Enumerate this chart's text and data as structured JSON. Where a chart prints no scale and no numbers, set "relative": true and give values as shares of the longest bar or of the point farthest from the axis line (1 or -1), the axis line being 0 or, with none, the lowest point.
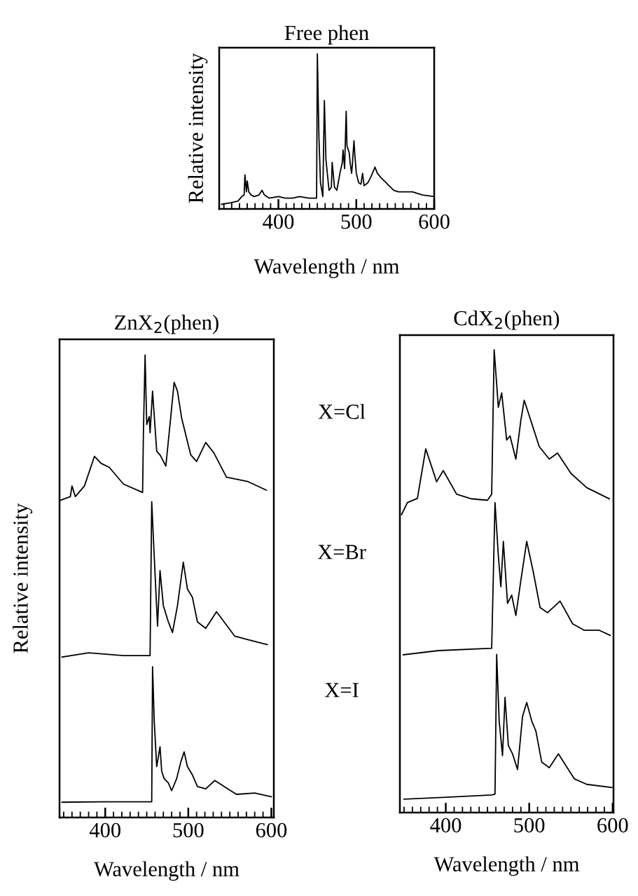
{
  "chart_data": [
    {
      "type": "line",
      "relative": true,
      "title": "Free phen",
      "xlabel": "Wavelength / nm",
      "ylabel": "Relative intensity",
      "xlim": [
        324,
        600
      ],
      "xticks": [
        {
          "value": 330,
          "label": null
        },
        {
          "value": 340,
          "label": null
        },
        {
          "value": 350,
          "label": null
        },
        {
          "value": 360,
          "label": null
        },
        {
          "value": 370,
          "label": null
        },
        {
          "value": 380,
          "label": null
        },
        {
          "value": 390,
          "label": null
        },
        400,
        {
          "value": 410,
          "label": null
        },
        {
          "value": 420,
          "label": null
        },
        {
          "value": 430,
          "label": null
        },
        {
          "value": 440,
          "label": null
        },
        {
          "value": 450,
          "label": null
        },
        {
          "value": 460,
          "label": null
        },
        {
          "value": 470,
          "label": null
        },
        {
          "value": 480,
          "label": null
        },
        {
          "value": 490,
          "label": null
        },
        500,
        {
          "value": 510,
          "label": null
        },
        {
          "value": 520,
          "label": null
        },
        {
          "value": 530,
          "label": null
        },
        {
          "value": 540,
          "label": null
        },
        {
          "value": 550,
          "label": null
        },
        {
          "value": 560,
          "label": null
        },
        {
          "value": 570,
          "label": null
        },
        {
          "value": 580,
          "label": null
        },
        {
          "value": 590,
          "label": null
        },
        600
      ],
      "series": [
        {
          "color": "#000000",
          "x": [
            327,
            339,
            348,
            353,
            356,
            357,
            359,
            360,
            362,
            365,
            369,
            375,
            379,
            382,
            388,
            400,
            409,
            418,
            427,
            439,
            449,
            450,
            452,
            454,
            457,
            459,
            461,
            465,
            468,
            469,
            472,
            475,
            479,
            482,
            483,
            485,
            487,
            488,
            491,
            492,
            494,
            495,
            497,
            498,
            500,
            503,
            506,
            508,
            510,
            515,
            519,
            524,
            527,
            532,
            536,
            542,
            548,
            554,
            563,
            572,
            585,
            600
          ],
          "values": [
            0.03,
            0.04,
            0.05,
            0.08,
            0.09,
            0.22,
            0.11,
            0.18,
            0.11,
            0.09,
            0.08,
            0.09,
            0.12,
            0.09,
            0.07,
            0.08,
            0.07,
            0.07,
            0.08,
            0.07,
            0.07,
            1.0,
            0.47,
            0.17,
            0.08,
            0.7,
            0.32,
            0.12,
            0.14,
            0.3,
            0.14,
            0.12,
            0.23,
            0.3,
            0.38,
            0.26,
            0.63,
            0.41,
            0.36,
            0.3,
            0.23,
            0.29,
            0.44,
            0.36,
            0.23,
            0.17,
            0.16,
            0.23,
            0.15,
            0.17,
            0.21,
            0.27,
            0.23,
            0.2,
            0.18,
            0.15,
            0.12,
            0.11,
            0.11,
            0.11,
            0.09,
            0.08
          ]
        }
      ]
    },
    {
      "type": "line",
      "relative": true,
      "title": "ZnX$_{2}$(phen)",
      "xlabel": "Wavelength / nm",
      "ylabel": "Relative intensity",
      "xlim": [
        345,
        603
      ],
      "xticks": [
        {
          "value": 350,
          "label": null
        },
        {
          "value": 360,
          "label": null
        },
        {
          "value": 370,
          "label": null
        },
        {
          "value": 380,
          "label": null
        },
        {
          "value": 390,
          "label": null
        },
        400,
        {
          "value": 410,
          "label": null
        },
        {
          "value": 420,
          "label": null
        },
        {
          "value": 430,
          "label": null
        },
        {
          "value": 440,
          "label": null
        },
        {
          "value": 450,
          "label": null
        },
        {
          "value": 460,
          "label": null
        },
        {
          "value": 470,
          "label": null
        },
        {
          "value": 480,
          "label": null
        },
        {
          "value": 490,
          "label": null
        },
        500,
        {
          "value": 510,
          "label": null
        },
        {
          "value": 520,
          "label": null
        },
        {
          "value": 530,
          "label": null
        },
        {
          "value": 540,
          "label": null
        },
        {
          "value": 550,
          "label": null
        },
        {
          "value": 560,
          "label": null
        },
        {
          "value": 570,
          "label": null
        },
        {
          "value": 580,
          "label": null
        },
        {
          "value": 590,
          "label": null
        },
        600
      ],
      "series": [
        {
          "color": "#000000",
          "x": [
            346,
            358,
            360,
            364,
            375,
            387,
            395,
            405,
            422,
            445,
            446,
            448,
            450,
            453,
            454,
            457,
            462,
            466,
            473,
            479,
            483,
            487,
            492,
            503,
            510,
            521,
            531,
            546,
            571,
            594
          ],
          "values": [
            0.686,
            0.694,
            0.717,
            0.694,
            0.717,
            0.781,
            0.766,
            0.757,
            0.721,
            0.703,
            0.832,
            1.0,
            0.85,
            0.867,
            0.832,
            0.922,
            0.792,
            0.784,
            0.76,
            0.868,
            0.941,
            0.922,
            0.864,
            0.784,
            0.77,
            0.811,
            0.788,
            0.736,
            0.727,
            0.708
          ]
        },
        {
          "color": "#000000",
          "x": [
            348,
            380,
            422,
            454,
            456,
            459,
            463,
            466,
            470,
            476,
            481,
            487,
            494,
            499,
            505,
            511,
            521,
            534,
            556,
            571,
            595
          ],
          "values": [
            0.347,
            0.356,
            0.35,
            0.35,
            0.683,
            0.565,
            0.414,
            0.534,
            0.458,
            0.423,
            0.4,
            0.458,
            0.552,
            0.494,
            0.476,
            0.423,
            0.409,
            0.445,
            0.392,
            0.385,
            0.374
          ]
        },
        {
          "color": "#000000",
          "x": [
            348,
            397,
            456,
            457,
            459,
            462,
            466,
            468,
            471,
            476,
            480,
            486,
            491,
            495,
            499,
            505,
            511,
            521,
            532,
            543,
            558,
            580,
            600
          ],
          "values": [
            0.033,
            0.034,
            0.034,
            0.326,
            0.209,
            0.11,
            0.153,
            0.1,
            0.084,
            0.075,
            0.058,
            0.084,
            0.12,
            0.142,
            0.11,
            0.092,
            0.067,
            0.062,
            0.08,
            0.067,
            0.05,
            0.053,
            0.045
          ]
        }
      ]
    },
    {
      "type": "line",
      "relative": true,
      "title": "CdX$_{2}$(phen)",
      "xlabel": "Wavelength / nm",
      "xlim": [
        345,
        601
      ],
      "annotations": [
        "X=Cl",
        "X=Br",
        "X=I"
      ],
      "xticks": [
        {
          "value": 350,
          "label": null
        },
        {
          "value": 360,
          "label": null
        },
        {
          "value": 370,
          "label": null
        },
        {
          "value": 380,
          "label": null
        },
        {
          "value": 390,
          "label": null
        },
        400,
        {
          "value": 410,
          "label": null
        },
        {
          "value": 420,
          "label": null
        },
        {
          "value": 430,
          "label": null
        },
        {
          "value": 440,
          "label": null
        },
        {
          "value": 450,
          "label": null
        },
        {
          "value": 460,
          "label": null
        },
        {
          "value": 470,
          "label": null
        },
        {
          "value": 480,
          "label": null
        },
        {
          "value": 490,
          "label": null
        },
        500,
        {
          "value": 510,
          "label": null
        },
        {
          "value": 520,
          "label": null
        },
        {
          "value": 530,
          "label": null
        },
        {
          "value": 540,
          "label": null
        },
        {
          "value": 550,
          "label": null
        },
        {
          "value": 560,
          "label": null
        },
        {
          "value": 570,
          "label": null
        },
        {
          "value": 580,
          "label": null
        },
        {
          "value": 590,
          "label": null
        },
        600
      ],
      "series": [
        {
          "color": "#000000",
          "x": [
            347,
            354,
            366,
            376,
            389,
            397,
            413,
            431,
            450,
            455,
            458,
            463,
            467,
            473,
            477,
            484,
            490,
            494,
            500,
            512,
            524,
            534,
            550,
            569,
            596
          ],
          "values": [
            0.644,
            0.67,
            0.679,
            0.786,
            0.715,
            0.739,
            0.688,
            0.678,
            0.675,
            0.688,
            1.0,
            0.876,
            0.907,
            0.805,
            0.814,
            0.764,
            0.848,
            0.891,
            0.858,
            0.791,
            0.764,
            0.777,
            0.733,
            0.702,
            0.678
          ]
        },
        {
          "color": "#000000",
          "x": [
            349,
            391,
            455,
            459,
            463,
            466,
            469,
            474,
            479,
            484,
            490,
            497,
            505,
            513,
            522,
            537,
            552,
            566,
            584,
            597
          ],
          "values": [
            0.341,
            0.35,
            0.355,
            0.67,
            0.555,
            0.488,
            0.586,
            0.452,
            0.47,
            0.426,
            0.502,
            0.586,
            0.519,
            0.443,
            0.432,
            0.457,
            0.408,
            0.394,
            0.394,
            0.383
          ]
        },
        {
          "color": "#000000",
          "x": [
            350,
            401,
            455,
            459,
            461,
            464,
            468,
            471,
            475,
            480,
            486,
            492,
            497,
            503,
            508,
            515,
            524,
            535,
            554,
            569,
            599
          ],
          "values": [
            0.029,
            0.033,
            0.038,
            0.04,
            0.342,
            0.198,
            0.123,
            0.249,
            0.145,
            0.127,
            0.093,
            0.208,
            0.238,
            0.198,
            0.176,
            0.109,
            0.097,
            0.127,
            0.073,
            0.061,
            0.054
          ]
        }
      ]
    }
  ]
}
